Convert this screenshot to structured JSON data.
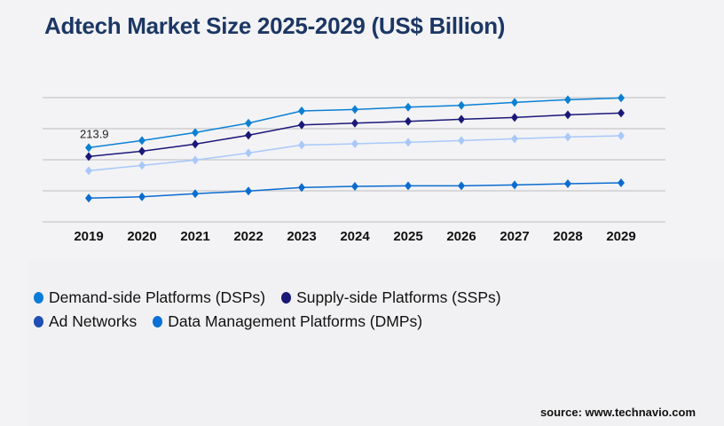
{
  "chart_data": {
    "type": "line",
    "title": "Adtech Market Size 2025-2029 (US$ Billion)",
    "x": [
      "2019",
      "2020",
      "2021",
      "2022",
      "2023",
      "2024",
      "2025",
      "2026",
      "2027",
      "2028",
      "2029"
    ],
    "ylim": [
      0,
      358
    ],
    "grid": true,
    "legend_position": "bottom-left",
    "annotations": [
      {
        "series": 0,
        "x": "2019",
        "label": "213.9"
      }
    ],
    "series": [
      {
        "name": "Demand-side Platforms (DSPs)",
        "color": "#0a80d4",
        "legend_color": "#0a7bd8",
        "values": [
          213.9,
          234.3,
          257.3,
          284.6,
          319.5,
          323.9,
          330.5,
          335.6,
          344.3,
          352.0,
          357.1
        ]
      },
      {
        "name": "Supply-side Platforms (SSPs)",
        "color": "#1a1878",
        "legend_color": "#1a1878",
        "values": [
          188.3,
          203.7,
          224.1,
          249.7,
          279.3,
          284.4,
          289.5,
          295.6,
          300.8,
          308.4,
          313.6
        ]
      },
      {
        "name": "Ad Networks",
        "color": "#a9c8fa",
        "legend_color": "#1f4fb2",
        "values": [
          147.4,
          162.7,
          178.1,
          198.5,
          221.5,
          224.9,
          229.2,
          234.3,
          239.4,
          244.5,
          247.9
        ]
      },
      {
        "name": "Data Management Platforms (DMPs)",
        "color": "#0a6cd0",
        "legend_color": "#0a6fd6",
        "values": [
          68.3,
          72.3,
          81.1,
          88.8,
          99.0,
          102.2,
          104.0,
          104.0,
          106.6,
          109.9,
          112.4
        ]
      }
    ]
  },
  "source": "source: www.technavio.com"
}
